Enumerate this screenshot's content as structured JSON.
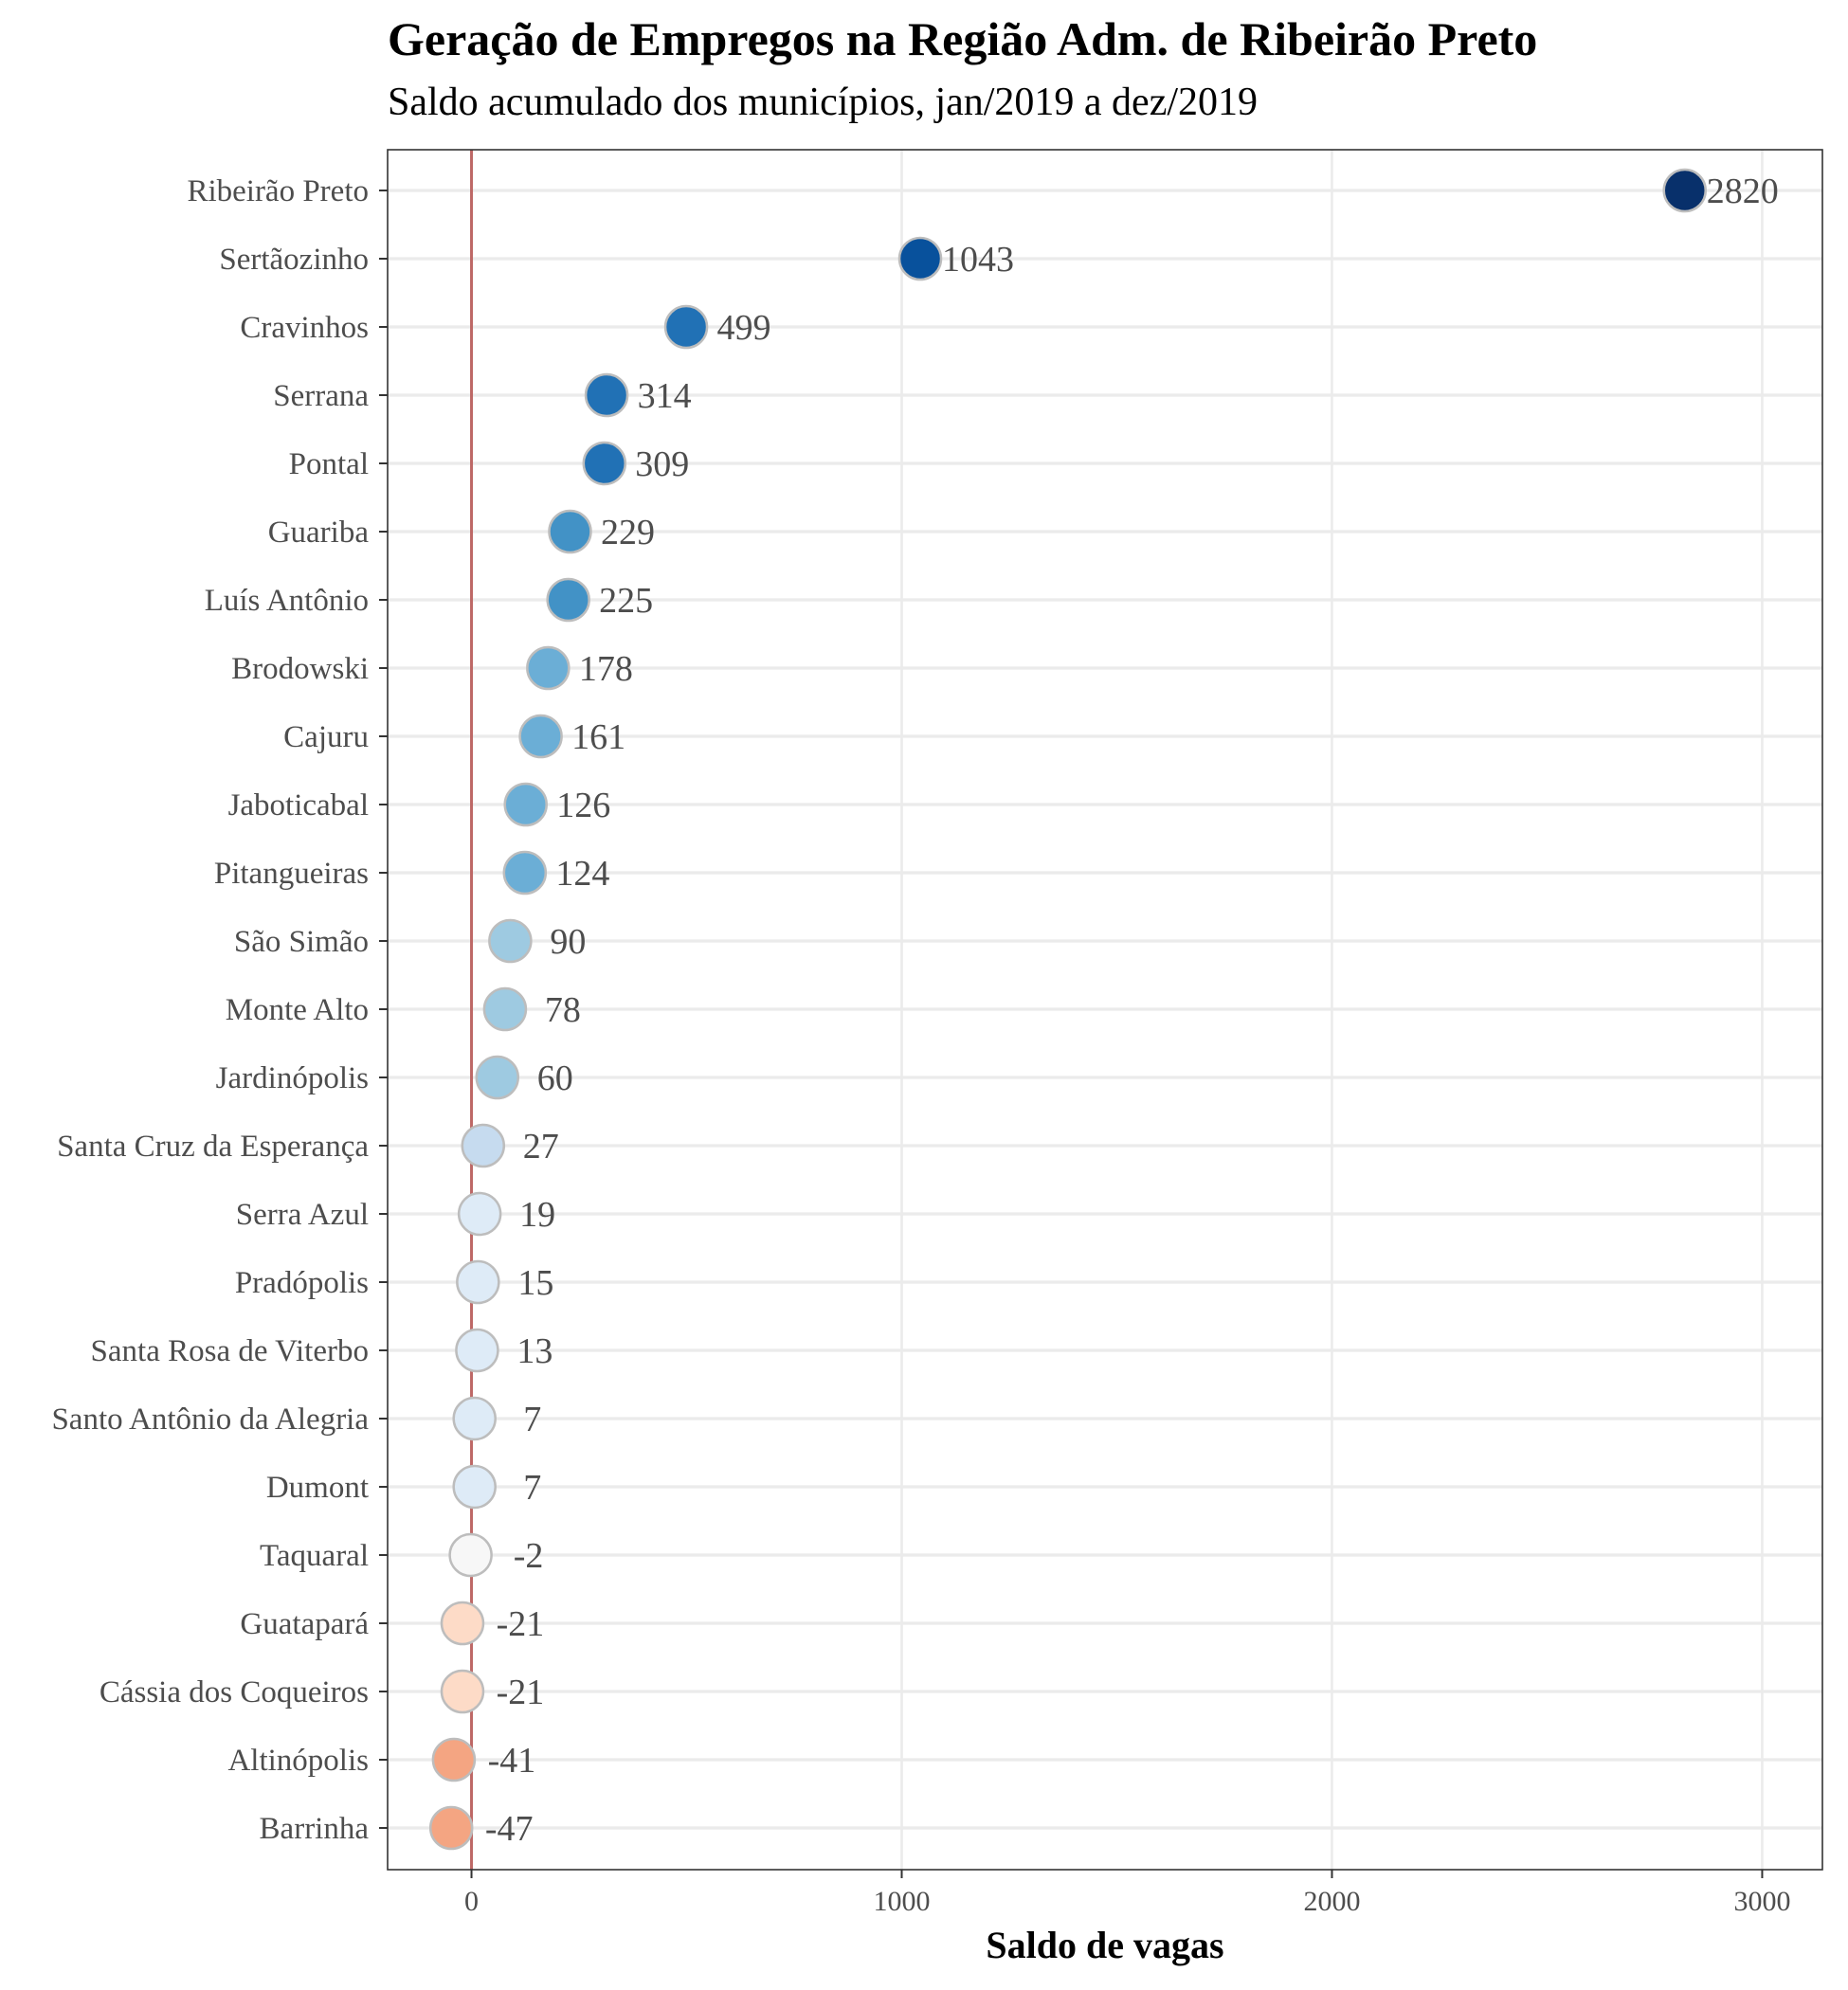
{
  "chart_data": {
    "type": "scatter",
    "title": "Geração de Empregos na Região Adm. de Ribeirão Preto",
    "subtitle": "Saldo acumulado dos municípios, jan/2019 a dez/2019",
    "xlabel": "Saldo de vagas",
    "ylabel": "",
    "xlim": [
      -195,
      3140
    ],
    "xticks": [
      0,
      1000,
      2000,
      3000
    ],
    "xtick_labels": [
      "0",
      "1000",
      "2000",
      "3000"
    ],
    "reference_line": {
      "x": 0,
      "color": "#b24745"
    },
    "grid": true,
    "categories": [
      "Ribeirão Preto",
      "Sertãozinho",
      "Cravinhos",
      "Serrana",
      "Pontal",
      "Guariba",
      "Luís Antônio",
      "Brodowski",
      "Cajuru",
      "Jaboticabal",
      "Pitangueiras",
      "São Simão",
      "Monte Alto",
      "Jardinópolis",
      "Santa Cruz da Esperança",
      "Serra Azul",
      "Pradópolis",
      "Santa Rosa de Viterbo",
      "Santo Antônio da Alegria",
      "Dumont",
      "Taquaral",
      "Guatapará",
      "Cássia dos Coqueiros",
      "Altinópolis",
      "Barrinha"
    ],
    "values": [
      2820,
      1043,
      499,
      314,
      309,
      229,
      225,
      178,
      161,
      126,
      124,
      90,
      78,
      60,
      27,
      19,
      15,
      13,
      7,
      7,
      -2,
      -21,
      -21,
      -41,
      -47
    ],
    "point_colors": [
      "#08306b",
      "#08519c",
      "#2171b5",
      "#2171b5",
      "#2171b5",
      "#4292c6",
      "#4292c6",
      "#6baed6",
      "#6baed6",
      "#6baed6",
      "#6baed6",
      "#9ecae1",
      "#9ecae1",
      "#9ecae1",
      "#c6dbef",
      "#deebf7",
      "#deebf7",
      "#deebf7",
      "#deebf7",
      "#deebf7",
      "#f7f7f7",
      "#fddbc7",
      "#fddbc7",
      "#f4a582",
      "#f4a582"
    ],
    "point_outline_color": "#bdbdbd"
  }
}
